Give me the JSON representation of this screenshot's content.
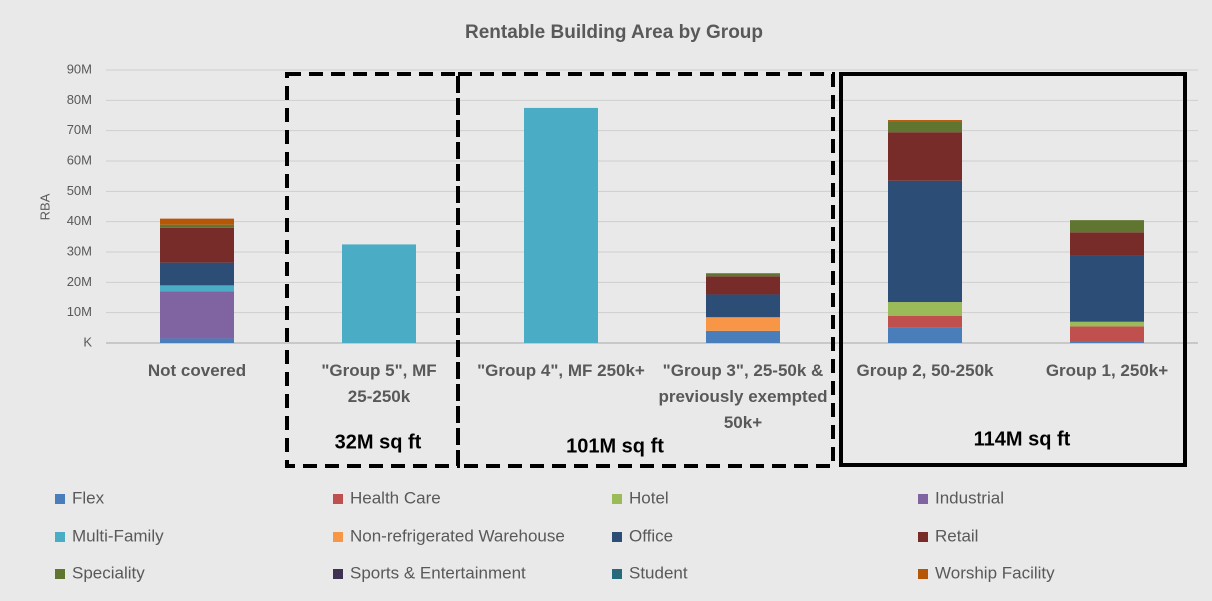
{
  "chart_data": {
    "type": "stacked_bar",
    "title": "Rentable Building Area by Group",
    "y_label": "RBA",
    "categories": [
      "Not covered",
      "\"Group 5\", MF 25-250k",
      "\"Group 4\", MF 250k+",
      "\"Group 3\", 25-50k & previously exempted 50k+",
      "Group 2, 50-250k",
      "Group 1, 250k+"
    ],
    "series": [
      {
        "name": "Flex",
        "color": "#4a7ebb",
        "values": [
          1.5,
          0,
          0,
          4,
          5,
          0.5
        ]
      },
      {
        "name": "Health Care",
        "color": "#c0504d",
        "values": [
          0,
          0,
          0,
          0,
          4,
          5
        ]
      },
      {
        "name": "Hotel",
        "color": "#9bbb59",
        "values": [
          0,
          0,
          0,
          0,
          4.5,
          1.5
        ]
      },
      {
        "name": "Industrial",
        "color": "#8064a2",
        "values": [
          15.5,
          0,
          0,
          0,
          0,
          0
        ]
      },
      {
        "name": "Multi-Family",
        "color": "#4bacc6",
        "values": [
          2,
          32.5,
          77.5,
          0,
          0,
          0
        ]
      },
      {
        "name": "Non-refrigerated Warehouse",
        "color": "#f79646",
        "values": [
          0,
          0,
          0,
          4.5,
          0,
          0
        ]
      },
      {
        "name": "Office",
        "color": "#2c4d75",
        "values": [
          7.5,
          0,
          0,
          7.5,
          40,
          22
        ]
      },
      {
        "name": "Retail",
        "color": "#772c2a",
        "values": [
          11.5,
          0,
          0,
          6,
          16,
          7.5
        ]
      },
      {
        "name": "Speciality",
        "color": "#5f7530",
        "values": [
          1,
          0,
          0,
          1,
          3.5,
          4
        ]
      },
      {
        "name": "Sports & Entertainment",
        "color": "#3f3151",
        "values": [
          0,
          0,
          0,
          0,
          0,
          0
        ]
      },
      {
        "name": "Student",
        "color": "#276a7c",
        "values": [
          0,
          0,
          0,
          0,
          0,
          0
        ]
      },
      {
        "name": "Worship Facility",
        "color": "#b65708",
        "values": [
          2,
          0,
          0,
          0,
          0.5,
          0
        ]
      }
    ],
    "ylim": [
      0,
      90
    ],
    "yticks": [
      {
        "value": 0,
        "label": "K"
      },
      {
        "value": 10,
        "label": "10M"
      },
      {
        "value": 20,
        "label": "20M"
      },
      {
        "value": 30,
        "label": "30M"
      },
      {
        "value": 40,
        "label": "40M"
      },
      {
        "value": 50,
        "label": "50M"
      },
      {
        "value": 60,
        "label": "60M"
      },
      {
        "value": 70,
        "label": "70M"
      },
      {
        "value": 80,
        "label": "80M"
      },
      {
        "value": 90,
        "label": "90M"
      }
    ],
    "grid": true,
    "annotations": [
      "32M sq ft",
      "101M sq ft",
      "114M sq ft"
    ]
  }
}
